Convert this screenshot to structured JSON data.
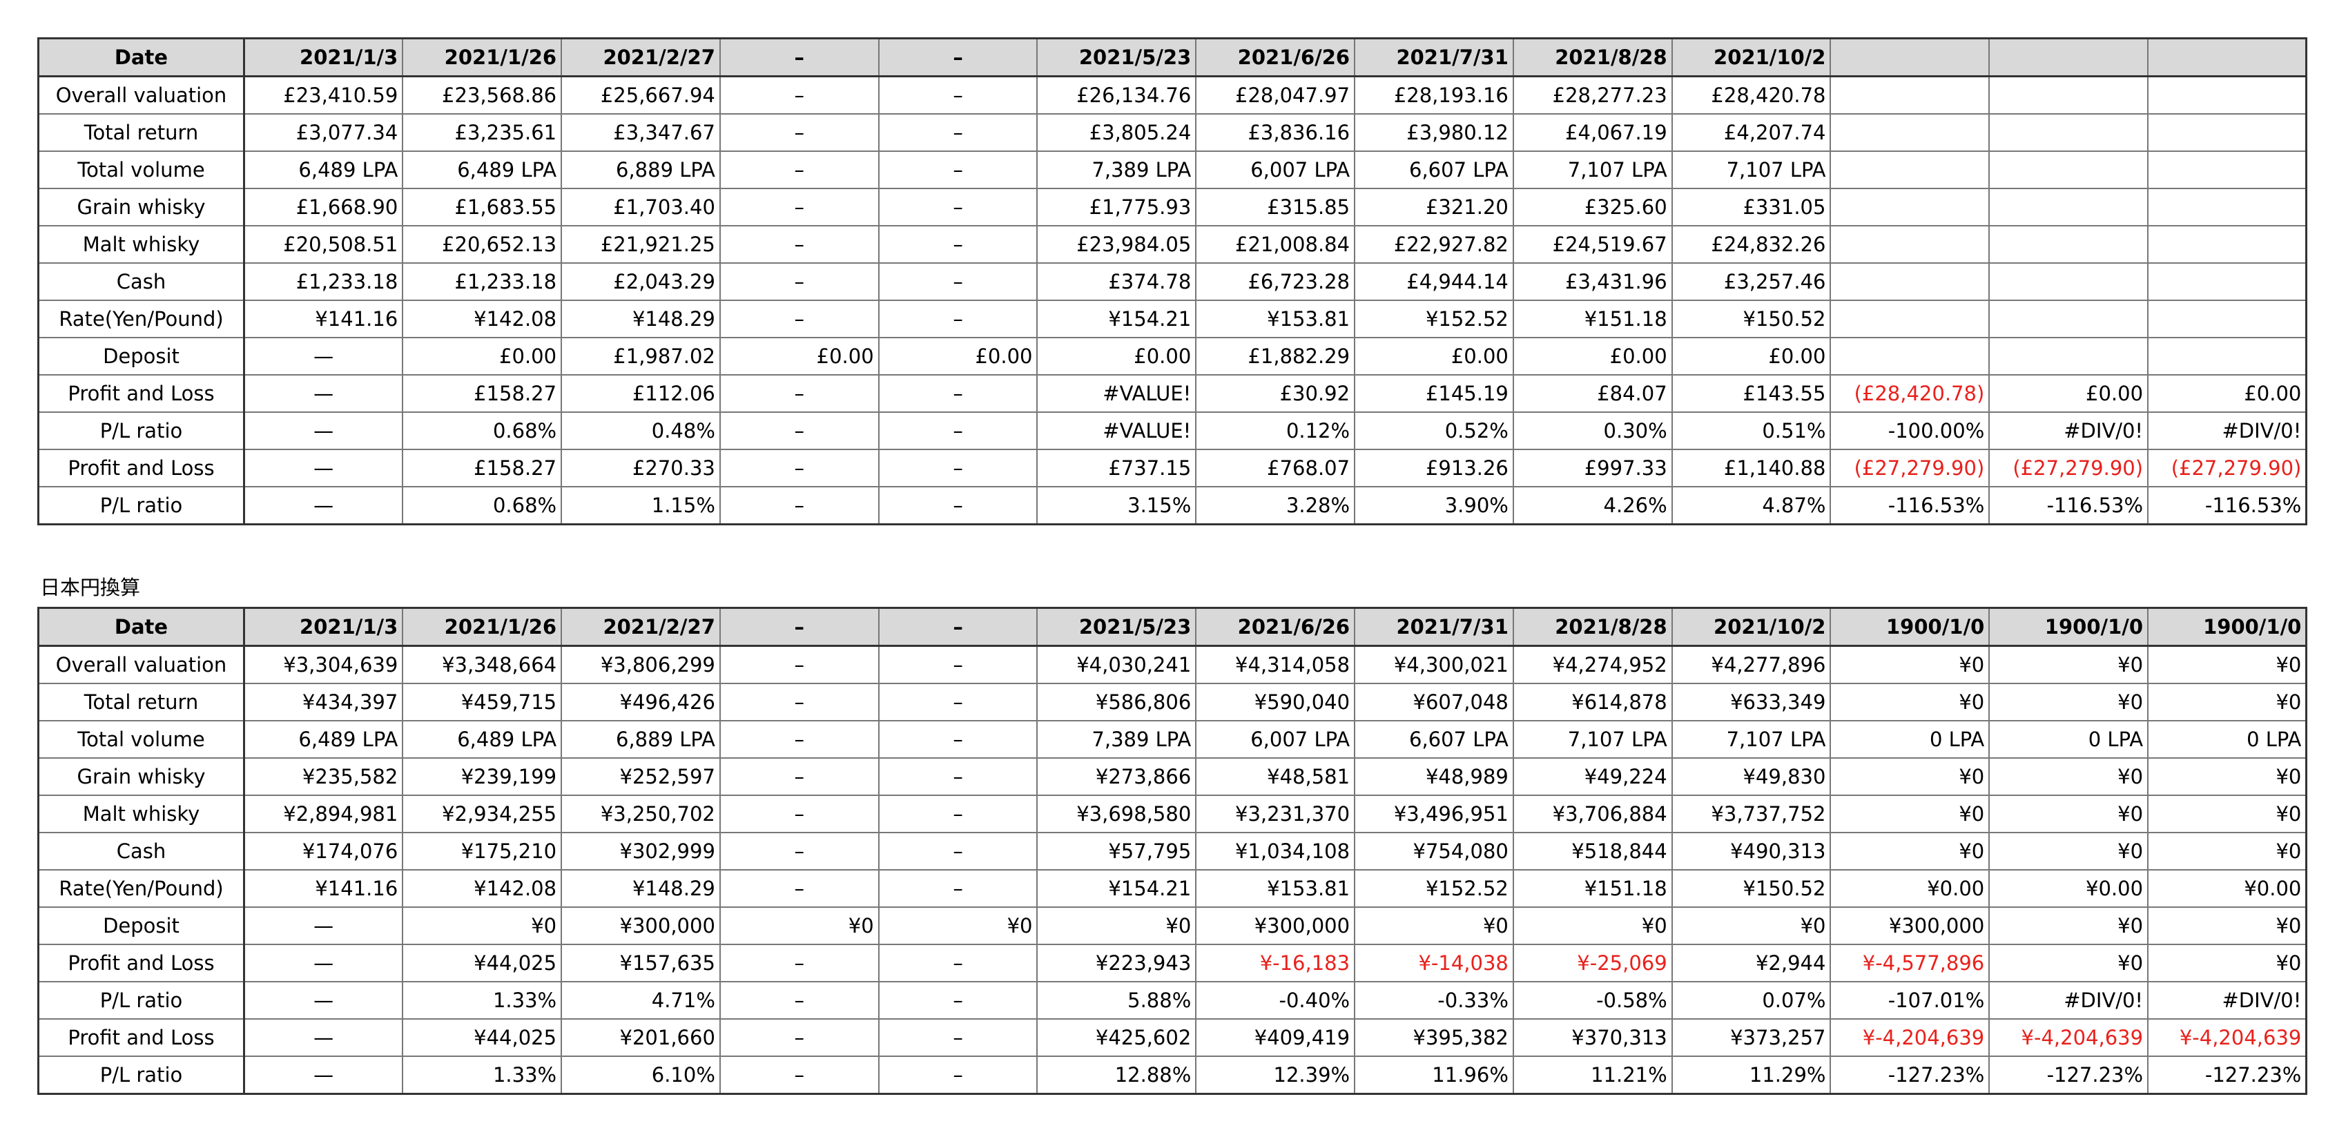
{
  "table1": {
    "rows": [
      [
        "Date",
        "2021/1/3",
        "2021/1/26",
        "2021/2/27",
        "–",
        "–",
        "2021/5/23",
        "2021/6/26",
        "2021/7/31",
        "2021/8/28",
        "2021/10/2",
        null,
        null,
        null
      ],
      [
        "Overall valuation",
        "£23,410.59",
        "£23,568.86",
        "£25,667.94",
        "–",
        "–",
        "£26,134.76",
        "£28,047.97",
        "£28,193.16",
        "£28,277.23",
        "£28,420.78",
        null,
        null,
        null
      ],
      [
        "Total return",
        "£3,077.34",
        "£3,235.61",
        "£3,347.67",
        "–",
        "–",
        "£3,805.24",
        "£3,836.16",
        "£3,980.12",
        "£4,067.19",
        "£4,207.74",
        null,
        null,
        null
      ],
      [
        "Total volume",
        "6,489 LPA",
        "6,489 LPA",
        "6,889 LPA",
        "–",
        "–",
        "7,389 LPA",
        "6,007 LPA",
        "6,607 LPA",
        "7,107 LPA",
        "7,107 LPA",
        null,
        null,
        null
      ],
      [
        "Grain whisky",
        "£1,668.90",
        "£1,683.55",
        "£1,703.40",
        "–",
        "–",
        "£1,775.93",
        "£315.85",
        "£321.20",
        "£325.60",
        "£331.05",
        null,
        null,
        null
      ],
      [
        "Malt whisky",
        "£20,508.51",
        "£20,652.13",
        "£21,921.25",
        "–",
        "–",
        "£23,984.05",
        "£21,008.84",
        "£22,927.82",
        "£24,519.67",
        "£24,832.26",
        null,
        null,
        null
      ],
      [
        "Cash",
        "£1,233.18",
        "£1,233.18",
        "£2,043.29",
        "–",
        "–",
        "£374.78",
        "£6,723.28",
        "£4,944.14",
        "£3,431.96",
        "£3,257.46",
        null,
        null,
        null
      ],
      [
        "Rate(Yen/Pound)",
        "¥141.16",
        "¥142.08",
        "¥148.29",
        "–",
        "–",
        "¥154.21",
        "¥153.81",
        "¥152.52",
        "¥151.18",
        "¥150.52",
        null,
        null,
        null
      ],
      [
        "Deposit",
        "—",
        "£0.00",
        "£1,987.02",
        "£0.00",
        "£0.00",
        "£0.00",
        "£1,882.29",
        "£0.00",
        "£0.00",
        "£0.00",
        null,
        null,
        null
      ],
      [
        "Profit and Loss",
        "—",
        "£158.27",
        "£112.06",
        "–",
        "–",
        "#VALUE!",
        "£30.92",
        "£145.19",
        "£84.07",
        "£143.55",
        "(£28,420.78)",
        "£0.00",
        "£0.00"
      ],
      [
        "P/L ratio",
        "—",
        "0.68%",
        "0.48%",
        "–",
        "–",
        "#VALUE!",
        "0.12%",
        "0.52%",
        "0.30%",
        "0.51%",
        "-100.00%",
        "#DIV/0!",
        "#DIV/0!"
      ],
      [
        "Profit and Loss",
        "—",
        "£158.27",
        "£270.33",
        "–",
        "–",
        "£737.15",
        "£768.07",
        "£913.26",
        "£997.33",
        "£1,140.88",
        "(£27,279.90)",
        "(£27,279.90)",
        "(£27,279.90)"
      ],
      [
        "P/L ratio",
        "—",
        "0.68%",
        "1.15%",
        "–",
        "–",
        "3.15%",
        "3.28%",
        "3.90%",
        "4.26%",
        "4.87%",
        "-116.53%",
        "-116.53%",
        "-116.53%"
      ]
    ]
  },
  "caption": "日本円換算",
  "table2": {
    "rows": [
      [
        "Date",
        "2021/1/3",
        "2021/1/26",
        "2021/2/27",
        "–",
        "–",
        "2021/5/23",
        "2021/6/26",
        "2021/7/31",
        "2021/8/28",
        "2021/10/2",
        "1900/1/0",
        "1900/1/0",
        "1900/1/0"
      ],
      [
        "Overall valuation",
        "¥3,304,639",
        "¥3,348,664",
        "¥3,806,299",
        "–",
        "–",
        "¥4,030,241",
        "¥4,314,058",
        "¥4,300,021",
        "¥4,274,952",
        "¥4,277,896",
        "¥0",
        "¥0",
        "¥0"
      ],
      [
        "Total return",
        "¥434,397",
        "¥459,715",
        "¥496,426",
        "–",
        "–",
        "¥586,806",
        "¥590,040",
        "¥607,048",
        "¥614,878",
        "¥633,349",
        "¥0",
        "¥0",
        "¥0"
      ],
      [
        "Total volume",
        "6,489 LPA",
        "6,489 LPA",
        "6,889 LPA",
        "–",
        "–",
        "7,389 LPA",
        "6,007 LPA",
        "6,607 LPA",
        "7,107 LPA",
        "7,107 LPA",
        "0 LPA",
        "0 LPA",
        "0 LPA"
      ],
      [
        "Grain whisky",
        "¥235,582",
        "¥239,199",
        "¥252,597",
        "–",
        "–",
        "¥273,866",
        "¥48,581",
        "¥48,989",
        "¥49,224",
        "¥49,830",
        "¥0",
        "¥0",
        "¥0"
      ],
      [
        "Malt whisky",
        "¥2,894,981",
        "¥2,934,255",
        "¥3,250,702",
        "–",
        "–",
        "¥3,698,580",
        "¥3,231,370",
        "¥3,496,951",
        "¥3,706,884",
        "¥3,737,752",
        "¥0",
        "¥0",
        "¥0"
      ],
      [
        "Cash",
        "¥174,076",
        "¥175,210",
        "¥302,999",
        "–",
        "–",
        "¥57,795",
        "¥1,034,108",
        "¥754,080",
        "¥518,844",
        "¥490,313",
        "¥0",
        "¥0",
        "¥0"
      ],
      [
        "Rate(Yen/Pound)",
        "¥141.16",
        "¥142.08",
        "¥148.29",
        "–",
        "–",
        "¥154.21",
        "¥153.81",
        "¥152.52",
        "¥151.18",
        "¥150.52",
        "¥0.00",
        "¥0.00",
        "¥0.00"
      ],
      [
        "Deposit",
        "—",
        "¥0",
        "¥300,000",
        "¥0",
        "¥0",
        "¥0",
        "¥300,000",
        "¥0",
        "¥0",
        "¥0",
        "¥300,000",
        "¥0",
        "¥0"
      ],
      [
        "Profit and Loss",
        "—",
        "¥44,025",
        "¥157,635",
        "–",
        "–",
        "¥223,943",
        "¥-16,183",
        "¥-14,038",
        "¥-25,069",
        "¥2,944",
        "¥-4,577,896",
        "¥0",
        "¥0"
      ],
      [
        "P/L ratio",
        "—",
        "1.33%",
        "4.71%",
        "–",
        "–",
        "5.88%",
        "-0.40%",
        "-0.33%",
        "-0.58%",
        "0.07%",
        "-107.01%",
        "#DIV/0!",
        "#DIV/0!"
      ],
      [
        "Profit and Loss",
        "—",
        "¥44,025",
        "¥201,660",
        "–",
        "–",
        "¥425,602",
        "¥409,419",
        "¥395,382",
        "¥370,313",
        "¥373,257",
        "¥-4,204,639",
        "¥-4,204,639",
        "¥-4,204,639"
      ],
      [
        "P/L ratio",
        "—",
        "1.33%",
        "6.10%",
        "–",
        "–",
        "12.88%",
        "12.39%",
        "11.96%",
        "11.21%",
        "11.29%",
        "-127.23%",
        "-127.23%",
        "-127.23%"
      ]
    ]
  }
}
